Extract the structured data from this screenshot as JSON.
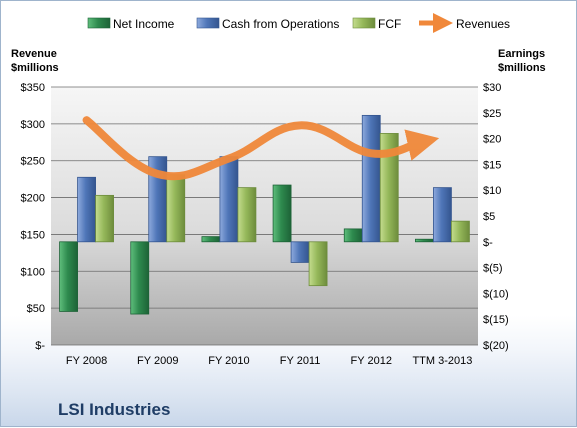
{
  "chart_data": {
    "type": "bar",
    "title": "LSI Industries",
    "categories": [
      "FY 2008",
      "FY 2009",
      "FY 2010",
      "FY 2011",
      "FY 2012",
      "TTM 3-2013"
    ],
    "left_axis": {
      "label_lines": [
        "Revenue",
        "$millions"
      ],
      "ticks": [
        "$-",
        "$50",
        "$100",
        "$150",
        "$200",
        "$250",
        "$300",
        "$350"
      ],
      "ylim": [
        0,
        350
      ]
    },
    "right_axis": {
      "label_lines": [
        "Earnings",
        "$millions"
      ],
      "ticks": [
        "$(20)",
        "$(15)",
        "$(10)",
        "$(5)",
        "$-",
        "$5",
        "$10",
        "$15",
        "$20",
        "$25",
        "$30"
      ],
      "ylim": [
        -20,
        30
      ]
    },
    "series": [
      {
        "name": "Net Income",
        "type": "bar",
        "axis": "right",
        "color": "#2e8a4e",
        "values": [
          -13.5,
          -14,
          1,
          11,
          2.5,
          0.5
        ]
      },
      {
        "name": "Cash from Operations",
        "type": "bar",
        "axis": "right",
        "color": "#4f76b8",
        "values": [
          12.5,
          16.5,
          16.5,
          -4,
          24.5,
          10.5
        ]
      },
      {
        "name": "FCF",
        "type": "bar",
        "axis": "right",
        "color": "#95b85a",
        "values": [
          9,
          13,
          10.5,
          -8.5,
          21,
          4
        ]
      },
      {
        "name": "Revenues",
        "type": "line",
        "axis": "left",
        "color": "#f0883a",
        "values": [
          305,
          232,
          253,
          298,
          260,
          275
        ]
      }
    ],
    "grid": true,
    "legend_position": "top"
  }
}
